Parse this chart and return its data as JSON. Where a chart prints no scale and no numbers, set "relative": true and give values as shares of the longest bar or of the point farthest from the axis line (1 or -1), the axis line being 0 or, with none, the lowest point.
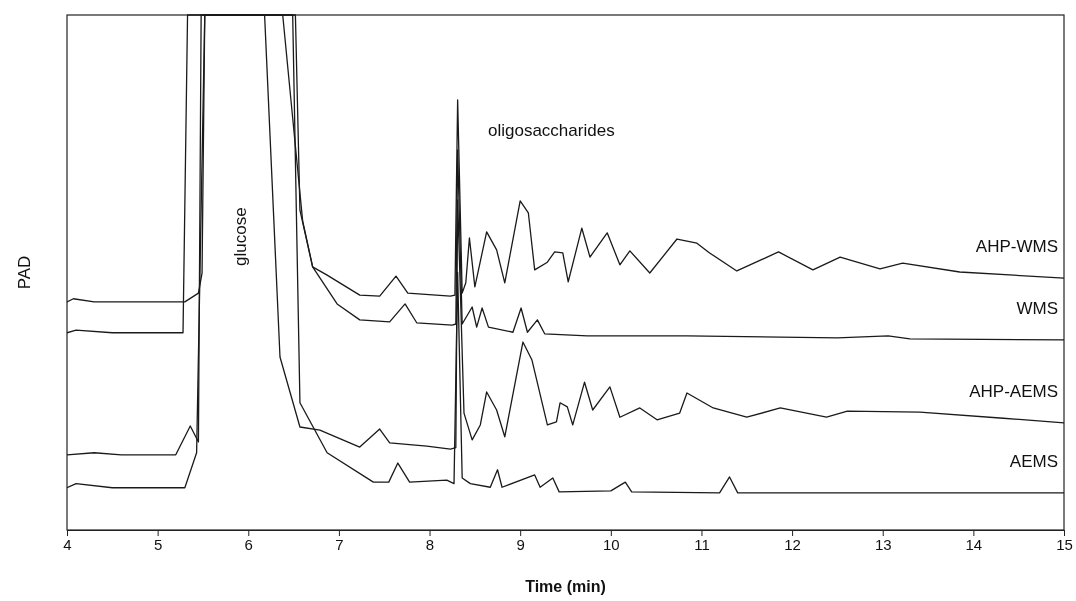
{
  "chart_data": {
    "type": "line",
    "relative": true,
    "xlabel": "Time (min)",
    "ylabel": "PAD",
    "xlim": [
      4,
      15
    ],
    "xticks": [
      4,
      5,
      6,
      7,
      8,
      9,
      10,
      11,
      12,
      13,
      14,
      15
    ],
    "tick_labels": "x",
    "annotations": [
      "glucose",
      "oligosaccharides"
    ],
    "series": [
      {
        "name": "AHP-WMS",
        "color": "#1a1a1a",
        "x": [
          4.0,
          4.07,
          4.3,
          5.3,
          5.45,
          5.49,
          5.52,
          6.38,
          6.6,
          6.71,
          6.87,
          7.23,
          7.45,
          7.63,
          7.76,
          8.23,
          8.28,
          8.31,
          8.36,
          8.4,
          8.44,
          8.5,
          8.63,
          8.74,
          8.83,
          9.0,
          9.09,
          9.16,
          9.3,
          9.38,
          9.47,
          9.53,
          9.68,
          9.77,
          9.96,
          10.1,
          10.21,
          10.43,
          10.73,
          10.95,
          11.09,
          11.39,
          11.85,
          12.23,
          12.53,
          12.97,
          13.22,
          13.85,
          15
        ],
        "values": [
          0.443,
          0.449,
          0.443,
          0.443,
          0.46,
          0.499,
          1,
          1,
          0.6,
          0.511,
          0.495,
          0.456,
          0.454,
          0.493,
          0.46,
          0.454,
          0.456,
          0.835,
          0.46,
          0.48,
          0.567,
          0.472,
          0.579,
          0.544,
          0.48,
          0.639,
          0.616,
          0.505,
          0.52,
          0.54,
          0.538,
          0.482,
          0.586,
          0.53,
          0.577,
          0.515,
          0.542,
          0.499,
          0.565,
          0.557,
          0.538,
          0.503,
          0.54,
          0.505,
          0.53,
          0.507,
          0.518,
          0.501,
          0.489
        ]
      },
      {
        "name": "WMS",
        "color": "#1a1a1a",
        "x": [
          4.0,
          4.1,
          4.5,
          5.28,
          5.33,
          6.52,
          6.57,
          6.71,
          6.98,
          7.23,
          7.56,
          7.73,
          7.86,
          8.25,
          8.29,
          8.31,
          8.36,
          8.47,
          8.52,
          8.58,
          8.65,
          8.92,
          9.01,
          9.08,
          9.19,
          9.27,
          9.74,
          10.84,
          12.5,
          13.06,
          13.3,
          15
        ],
        "values": [
          0.383,
          0.388,
          0.383,
          0.383,
          1,
          1,
          0.621,
          0.511,
          0.439,
          0.408,
          0.404,
          0.439,
          0.402,
          0.398,
          0.4,
          0.738,
          0.4,
          0.433,
          0.394,
          0.431,
          0.394,
          0.384,
          0.431,
          0.384,
          0.408,
          0.381,
          0.377,
          0.377,
          0.373,
          0.377,
          0.371,
          0.369
        ]
      },
      {
        "name": "AHP-AEMS",
        "color": "#1a1a1a",
        "x": [
          4.0,
          4.3,
          4.6,
          5.2,
          5.36,
          5.45,
          5.48,
          6.18,
          6.35,
          6.57,
          6.79,
          7.23,
          7.45,
          7.56,
          7.97,
          8.23,
          8.29,
          8.31,
          8.38,
          8.47,
          8.56,
          8.63,
          8.74,
          8.83,
          9.03,
          9.13,
          9.3,
          9.4,
          9.44,
          9.52,
          9.58,
          9.71,
          9.8,
          9.99,
          10.1,
          10.32,
          10.51,
          10.76,
          10.84,
          11.13,
          11.5,
          11.87,
          12.38,
          12.61,
          13.41,
          14.33,
          15
        ],
        "values": [
          0.146,
          0.15,
          0.146,
          0.146,
          0.202,
          0.171,
          1,
          1,
          0.336,
          0.2,
          0.194,
          0.161,
          0.196,
          0.169,
          0.163,
          0.157,
          0.16,
          0.641,
          0.227,
          0.175,
          0.204,
          0.268,
          0.233,
          0.181,
          0.365,
          0.33,
          0.204,
          0.21,
          0.247,
          0.239,
          0.204,
          0.287,
          0.233,
          0.278,
          0.219,
          0.237,
          0.214,
          0.227,
          0.266,
          0.237,
          0.219,
          0.237,
          0.219,
          0.231,
          0.229,
          0.217,
          0.208
        ]
      },
      {
        "name": "AEMS",
        "color": "#1a1a1a",
        "x": [
          4.0,
          4.1,
          4.5,
          5.3,
          5.43,
          5.52,
          6.49,
          6.57,
          6.87,
          7.38,
          7.55,
          7.65,
          7.78,
          8.19,
          8.27,
          8.31,
          8.36,
          8.45,
          8.67,
          8.75,
          8.8,
          9.16,
          9.22,
          9.36,
          9.43,
          10.0,
          10.16,
          10.23,
          11.2,
          11.31,
          11.4,
          15
        ],
        "values": [
          0.082,
          0.09,
          0.082,
          0.082,
          0.15,
          1,
          1,
          0.247,
          0.15,
          0.093,
          0.093,
          0.13,
          0.093,
          0.097,
          0.09,
          0.5,
          0.101,
          0.09,
          0.083,
          0.117,
          0.083,
          0.107,
          0.083,
          0.101,
          0.074,
          0.076,
          0.093,
          0.074,
          0.072,
          0.103,
          0.072,
          0.072
        ]
      }
    ]
  }
}
